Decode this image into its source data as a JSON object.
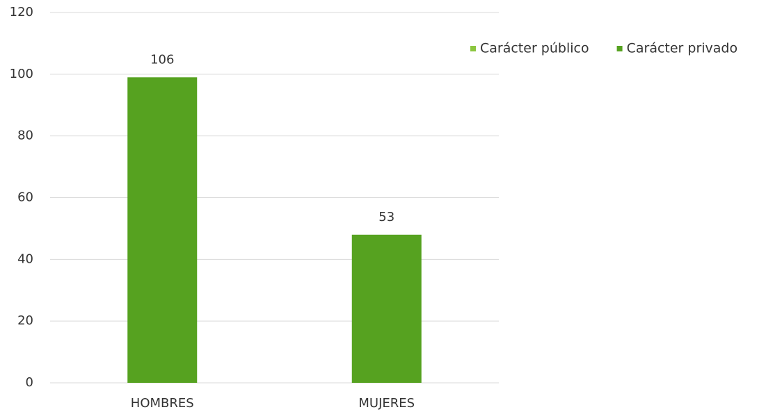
{
  "chart_data": {
    "type": "bar",
    "stacked": true,
    "categories": [
      "HOMBRES",
      "MUJERES"
    ],
    "series": [
      {
        "name": "Carácter público",
        "color": "#8cc63f",
        "values": [
          null,
          null
        ]
      },
      {
        "name": "Carácter privado",
        "color": "#56a220",
        "values": [
          99,
          48
        ]
      }
    ],
    "annotations": [
      "106",
      "53"
    ],
    "ylim": [
      0,
      120
    ],
    "yticks": [
      0,
      20,
      40,
      60,
      80,
      100,
      120
    ],
    "grid": true,
    "legend": "top-right"
  }
}
